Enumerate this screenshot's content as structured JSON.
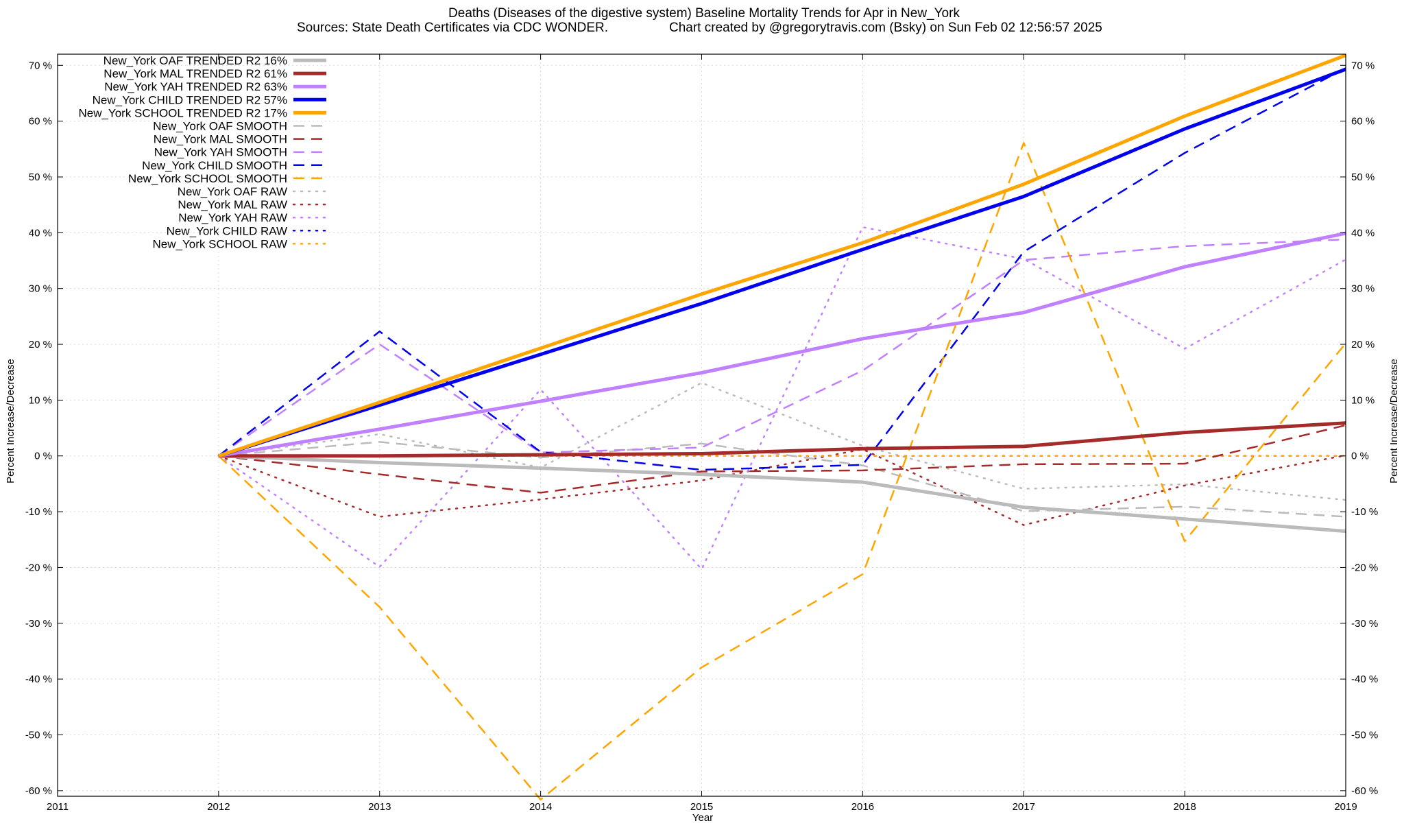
{
  "chart_data": {
    "type": "line",
    "title": "Deaths (Diseases of the digestive system)  Baseline Mortality Trends for Apr in New_York",
    "subtitle_left": "Sources: State Death Certificates via CDC WONDER.",
    "subtitle_right": "Chart created by @gregorytravis.com (Bsky) on Sun Feb 02 12:56:57 2025",
    "xlabel": "Year",
    "ylabel_left": "Percent Increase/Decrease",
    "ylabel_right": "Percent Increase/Decrease",
    "xlim": [
      2011,
      2019
    ],
    "ylim": [
      -61,
      72
    ],
    "x_ticks": [
      2011,
      2012,
      2013,
      2014,
      2015,
      2016,
      2017,
      2018,
      2019
    ],
    "y_ticks": [
      {
        "value": 70,
        "label": "70 %"
      },
      {
        "value": 60,
        "label": "60 %"
      },
      {
        "value": 50,
        "label": "50 %"
      },
      {
        "value": 40,
        "label": "40 %"
      },
      {
        "value": 30,
        "label": "30 %"
      },
      {
        "value": 20,
        "label": "20 %"
      },
      {
        "value": 10,
        "label": "10 %"
      },
      {
        "value": 0,
        "label": "0 %"
      },
      {
        "value": -10,
        "label": "-10 %"
      },
      {
        "value": -20,
        "label": "-20 %"
      },
      {
        "value": -30,
        "label": "-30 %"
      },
      {
        "value": -40,
        "label": "-40 %"
      },
      {
        "value": -50,
        "label": "-50 %"
      },
      {
        "value": -60,
        "label": "-60 %"
      }
    ],
    "grid": true,
    "legend_position": "top-left",
    "x": [
      2012,
      2013,
      2014,
      2015,
      2016,
      2017,
      2018,
      2019
    ],
    "series": [
      {
        "name": "New_York OAF TRENDED R2  16%",
        "style": "trended",
        "color": "#bbbbbb",
        "values": [
          0,
          -1.2,
          -2.2,
          -3.3,
          -4.7,
          -9.2,
          -11.3,
          -13.5
        ]
      },
      {
        "name": "New_York MAL TRENDED R2  61%",
        "style": "trended",
        "color": "#a52a2a",
        "values": [
          0,
          0,
          0.2,
          0.4,
          1.3,
          1.7,
          4.2,
          5.9
        ]
      },
      {
        "name": "New_York YAH TRENDED R2  63%",
        "style": "trended",
        "color": "#c080ff",
        "values": [
          0,
          4.8,
          9.8,
          14.9,
          21,
          25.7,
          33.9,
          39.9
        ]
      },
      {
        "name": "New_York CHILD TRENDED R2  57%",
        "style": "trended",
        "color": "#0000ee",
        "values": [
          0,
          9.1,
          18.2,
          27.3,
          37,
          46.5,
          58.6,
          69.3
        ]
      },
      {
        "name": "New_York SCHOOL TRENDED R2  17%",
        "style": "trended",
        "color": "#ffa500",
        "values": [
          0,
          9.6,
          19.3,
          29,
          38.2,
          48.7,
          60.9,
          71.8
        ]
      },
      {
        "name": "New_York OAF SMOOTH",
        "style": "smooth",
        "color": "#bbbbbb",
        "values": [
          0,
          2.5,
          -0.3,
          2.2,
          -1.7,
          -9.9,
          -9.1,
          -10.9
        ]
      },
      {
        "name": "New_York MAL SMOOTH",
        "style": "smooth",
        "color": "#a52a2a",
        "values": [
          0,
          -3.3,
          -6.6,
          -2.8,
          -2.6,
          -1.5,
          -1.4,
          5.5
        ]
      },
      {
        "name": "New_York YAH SMOOTH",
        "style": "smooth",
        "color": "#c080ff",
        "values": [
          0,
          20,
          0.6,
          1.5,
          15.3,
          35.1,
          37.6,
          38.8
        ]
      },
      {
        "name": "New_York CHILD SMOOTH",
        "style": "smooth",
        "color": "#0000ee",
        "values": [
          0,
          22.3,
          0.7,
          -2.5,
          -1.6,
          36.6,
          54.3,
          69.5
        ]
      },
      {
        "name": "New_York SCHOOL SMOOTH",
        "style": "smooth",
        "color": "#ffa500",
        "values": [
          0,
          -27.1,
          -61.6,
          -37.9,
          -21.2,
          56.1,
          -15.3,
          20.2
        ]
      },
      {
        "name": "New_York OAF RAW",
        "style": "raw",
        "color": "#bbbbbb",
        "values": [
          0,
          3.9,
          -2.1,
          13.1,
          1.8,
          -5.9,
          -5.1,
          -7.9
        ]
      },
      {
        "name": "New_York MAL RAW",
        "style": "raw",
        "color": "#a52a2a",
        "values": [
          0,
          -10.9,
          -7.8,
          -4.4,
          1.2,
          -12.4,
          -5.3,
          0.1
        ]
      },
      {
        "name": "New_York YAH RAW",
        "style": "raw",
        "color": "#c080ff",
        "values": [
          0,
          -19.9,
          11.9,
          -20.3,
          41,
          35.3,
          19.2,
          35.2
        ]
      },
      {
        "name": "New_York CHILD RAW",
        "style": "raw",
        "color": "#0000ee",
        "values": [
          0,
          0,
          0,
          0,
          0,
          0,
          0,
          0
        ]
      },
      {
        "name": "New_York SCHOOL RAW",
        "style": "raw",
        "color": "#ffa500",
        "values": [
          0,
          0,
          0,
          0,
          0,
          0,
          0,
          0
        ]
      }
    ]
  }
}
